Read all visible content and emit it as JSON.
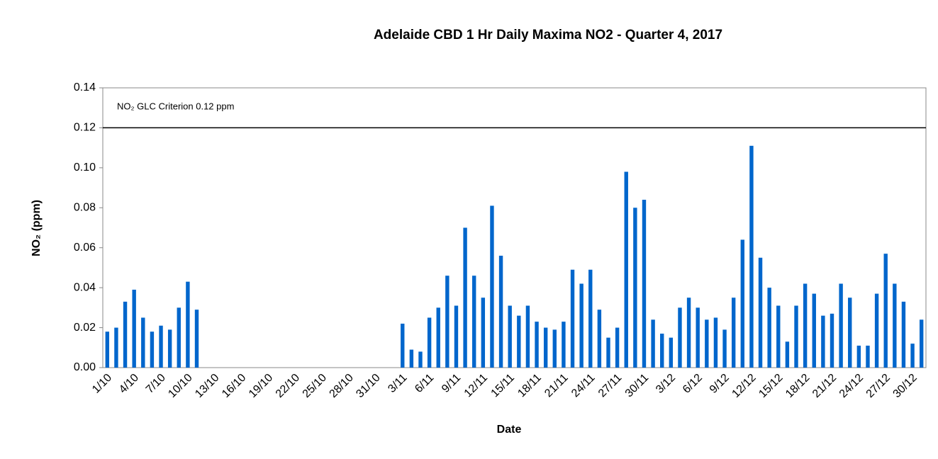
{
  "chart_data": {
    "type": "bar",
    "title": "Adelaide CBD 1 Hr Daily Maxima NO2 - Quarter 4, 2017",
    "x_label": "Date",
    "y_label": "NO₂ (ppm)",
    "color": "#0066cc",
    "categories": [
      "1/10",
      null,
      null,
      "4/10",
      null,
      null,
      "7/10",
      null,
      null,
      "10/10",
      null,
      null,
      "13/10",
      null,
      null,
      "16/10",
      null,
      null,
      "19/10",
      null,
      null,
      "22/10",
      null,
      null,
      "25/10",
      null,
      null,
      "28/10",
      null,
      null,
      "31/10",
      null,
      null,
      "3/11",
      null,
      null,
      "6/11",
      null,
      null,
      "9/11",
      null,
      null,
      "12/11",
      null,
      null,
      "15/11",
      null,
      null,
      "18/11",
      null,
      null,
      "21/11",
      null,
      null,
      "24/11",
      null,
      null,
      "27/11",
      null,
      null,
      "30/11",
      null,
      null,
      "3/12",
      null,
      null,
      "6/12",
      null,
      null,
      "9/12",
      null,
      null,
      "12/12",
      null,
      null,
      "15/12",
      null,
      null,
      "18/12",
      null,
      null,
      "21/12",
      null,
      null,
      "24/12",
      null,
      null,
      "27/12",
      null,
      null,
      "30/12",
      null
    ],
    "values": [
      0.018,
      0.02,
      0.033,
      0.039,
      0.025,
      0.018,
      0.021,
      0.019,
      0.03,
      0.043,
      0.029,
      null,
      null,
      null,
      null,
      null,
      null,
      null,
      null,
      null,
      null,
      null,
      null,
      null,
      null,
      null,
      null,
      null,
      null,
      null,
      null,
      null,
      null,
      0.022,
      0.009,
      0.008,
      0.025,
      0.03,
      0.046,
      0.031,
      0.07,
      0.046,
      0.035,
      0.081,
      0.056,
      0.031,
      0.026,
      0.031,
      0.023,
      0.02,
      0.019,
      0.023,
      0.049,
      0.042,
      0.049,
      0.029,
      0.015,
      0.02,
      0.098,
      0.08,
      0.084,
      0.024,
      0.017,
      0.015,
      0.03,
      0.035,
      0.03,
      0.024,
      0.025,
      0.019,
      0.035,
      0.064,
      0.111,
      0.055,
      0.04,
      0.031,
      0.013,
      0.031,
      0.042,
      0.037,
      0.026,
      0.027,
      0.042,
      0.035,
      0.011,
      0.011,
      0.037,
      0.057,
      0.042,
      0.033,
      0.012,
      0.024
    ],
    "ylim": [
      0,
      0.14
    ],
    "yticks": [
      {
        "value": 0,
        "label": "0.00"
      },
      {
        "value": 0.02,
        "label": "0.02"
      },
      {
        "value": 0.04,
        "label": "0.04"
      },
      {
        "value": 0.06,
        "label": "0.06"
      },
      {
        "value": 0.08,
        "label": "0.08"
      },
      {
        "value": 0.1,
        "label": "0.10"
      },
      {
        "value": 0.12,
        "label": "0.12"
      },
      {
        "value": 0.14,
        "label": "0.14"
      }
    ],
    "reference_line": {
      "value": 0.12,
      "label": "NO₂  GLC Criterion 0.12 ppm"
    }
  }
}
